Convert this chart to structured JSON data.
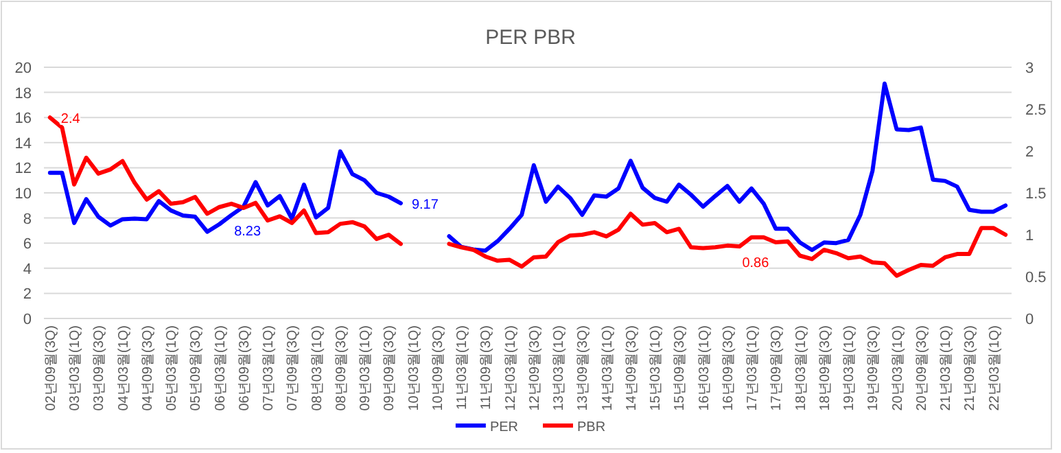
{
  "chart_data": {
    "type": "line",
    "title": "PER PBR",
    "categories": [
      "02년09월(3Q)",
      null,
      "03년03월(1Q)",
      null,
      "03년09월(3Q)",
      null,
      "04년03월(1Q)",
      null,
      "04년09월(3Q)",
      null,
      "05년03월(1Q)",
      null,
      "05년09월(3Q)",
      null,
      "06년03월(1Q)",
      null,
      "06년09월(3Q)",
      null,
      "07년03월(1Q)",
      null,
      "07년09월(3Q)",
      null,
      "08년03월(1Q)",
      null,
      "08년09월(3Q)",
      null,
      "09년03월(1Q)",
      null,
      "09년09월(3Q)",
      null,
      "10년03월(1Q)",
      null,
      "10년09월(3Q)",
      null,
      "11년03월(1Q)",
      null,
      "11년09월(3Q)",
      null,
      "12년03월(1Q)",
      null,
      "12년09월(3Q)",
      null,
      "13년03월(1Q)",
      null,
      "13년09월(3Q)",
      null,
      "14년03월(1Q)",
      null,
      "14년09월(3Q)",
      null,
      "15년03월(1Q)",
      null,
      "15년09월(3Q)",
      null,
      "16년03월(1Q)",
      null,
      "16년09월(3Q)",
      null,
      "17년03월(1Q)",
      null,
      "17년09월(3Q)",
      null,
      "18년03월(1Q)",
      null,
      "18년09월(3Q)",
      null,
      "19년03월(1Q)",
      null,
      "19년09월(3Q)",
      null,
      "20년03월(1Q)",
      null,
      "20년09월(3Q)",
      null,
      "21년03월(1Q)",
      null,
      "21년09월(3Q)",
      null,
      "22년03월(1Q)",
      null
    ],
    "series": [
      {
        "name": "PER",
        "color": "#0000ff",
        "values": [
          11.6,
          11.6,
          7.6,
          9.5,
          8.1,
          7.4,
          7.9,
          7.95,
          7.9,
          9.35,
          8.6,
          8.2,
          8.1,
          6.9,
          7.5,
          8.23,
          8.9,
          10.85,
          9.0,
          9.75,
          7.95,
          10.65,
          8.05,
          8.8,
          13.3,
          11.5,
          11.0,
          10.0,
          9.7,
          9.17,
          null,
          null,
          null,
          6.55,
          5.7,
          5.5,
          5.4,
          6.15,
          7.15,
          8.25,
          12.2,
          9.3,
          10.5,
          9.6,
          8.25,
          9.8,
          9.7,
          10.35,
          12.55,
          10.4,
          9.6,
          9.3,
          10.65,
          9.85,
          8.9,
          9.75,
          10.55,
          9.3,
          10.35,
          9.15,
          7.15,
          7.15,
          6.05,
          5.45,
          6.05,
          6.0,
          6.25,
          8.25,
          11.75,
          18.7,
          15.05,
          15.0,
          15.2,
          11.05,
          10.95,
          10.5,
          8.65,
          8.5,
          8.5,
          9.0
        ],
        "value_labels": [
          null,
          null,
          null,
          null,
          null,
          null,
          null,
          null,
          null,
          null,
          null,
          null,
          null,
          null,
          null,
          "8.23",
          null,
          null,
          null,
          null,
          null,
          null,
          null,
          null,
          null,
          null,
          null,
          null,
          null,
          "9.17",
          null,
          null,
          null,
          null,
          null,
          null,
          null,
          null,
          null,
          null,
          null,
          null,
          null,
          null,
          null,
          null,
          null,
          null,
          null,
          null,
          null,
          null,
          null,
          null,
          null,
          null,
          null,
          null,
          null,
          null,
          null,
          null,
          null,
          null,
          null,
          null,
          null,
          null,
          null,
          null,
          null,
          null,
          null,
          null,
          null,
          null,
          null,
          null,
          null,
          null
        ]
      },
      {
        "name": "PBR",
        "color": "#ff0000",
        "axis": "y2",
        "values": [
          2.4,
          2.28,
          1.6,
          1.92,
          1.73,
          1.78,
          1.88,
          1.62,
          1.42,
          1.52,
          1.37,
          1.39,
          1.45,
          1.25,
          1.33,
          1.37,
          1.32,
          1.38,
          1.17,
          1.22,
          1.14,
          1.29,
          1.02,
          1.03,
          1.13,
          1.15,
          1.1,
          0.95,
          1.0,
          0.89,
          null,
          null,
          null,
          0.89,
          0.85,
          0.82,
          0.74,
          0.69,
          0.7,
          0.62,
          0.73,
          0.74,
          0.91,
          0.99,
          1.0,
          1.03,
          0.98,
          1.06,
          1.25,
          1.12,
          1.14,
          1.03,
          1.07,
          0.85,
          0.84,
          0.85,
          0.87,
          0.86,
          0.97,
          0.97,
          0.91,
          0.92,
          0.75,
          0.71,
          0.82,
          0.78,
          0.72,
          0.74,
          0.67,
          0.66,
          0.51,
          0.58,
          0.64,
          0.63,
          0.73,
          0.77,
          0.77,
          1.08,
          1.08,
          1.0
        ],
        "value_labels": [
          "2.4",
          null,
          null,
          null,
          null,
          null,
          null,
          null,
          null,
          null,
          null,
          null,
          null,
          null,
          null,
          null,
          null,
          null,
          null,
          null,
          null,
          null,
          null,
          null,
          null,
          null,
          null,
          null,
          null,
          null,
          null,
          null,
          null,
          null,
          null,
          null,
          null,
          null,
          null,
          null,
          null,
          null,
          null,
          null,
          null,
          null,
          null,
          null,
          null,
          null,
          null,
          null,
          null,
          null,
          null,
          null,
          null,
          "0.86",
          null,
          null,
          null,
          null,
          null,
          null,
          null,
          null,
          null,
          null,
          null,
          null,
          null,
          null,
          null,
          null,
          null,
          null,
          null,
          null,
          null,
          null
        ]
      }
    ],
    "ylim": [
      0,
      20
    ],
    "yticks": [
      0,
      2,
      4,
      6,
      8,
      10,
      12,
      14,
      16,
      18,
      20
    ],
    "y2lim": [
      0,
      3
    ],
    "y2ticks": [
      0,
      0.5,
      1,
      1.5,
      2,
      2.5,
      3
    ],
    "grid": "y",
    "legend": "bottom"
  }
}
